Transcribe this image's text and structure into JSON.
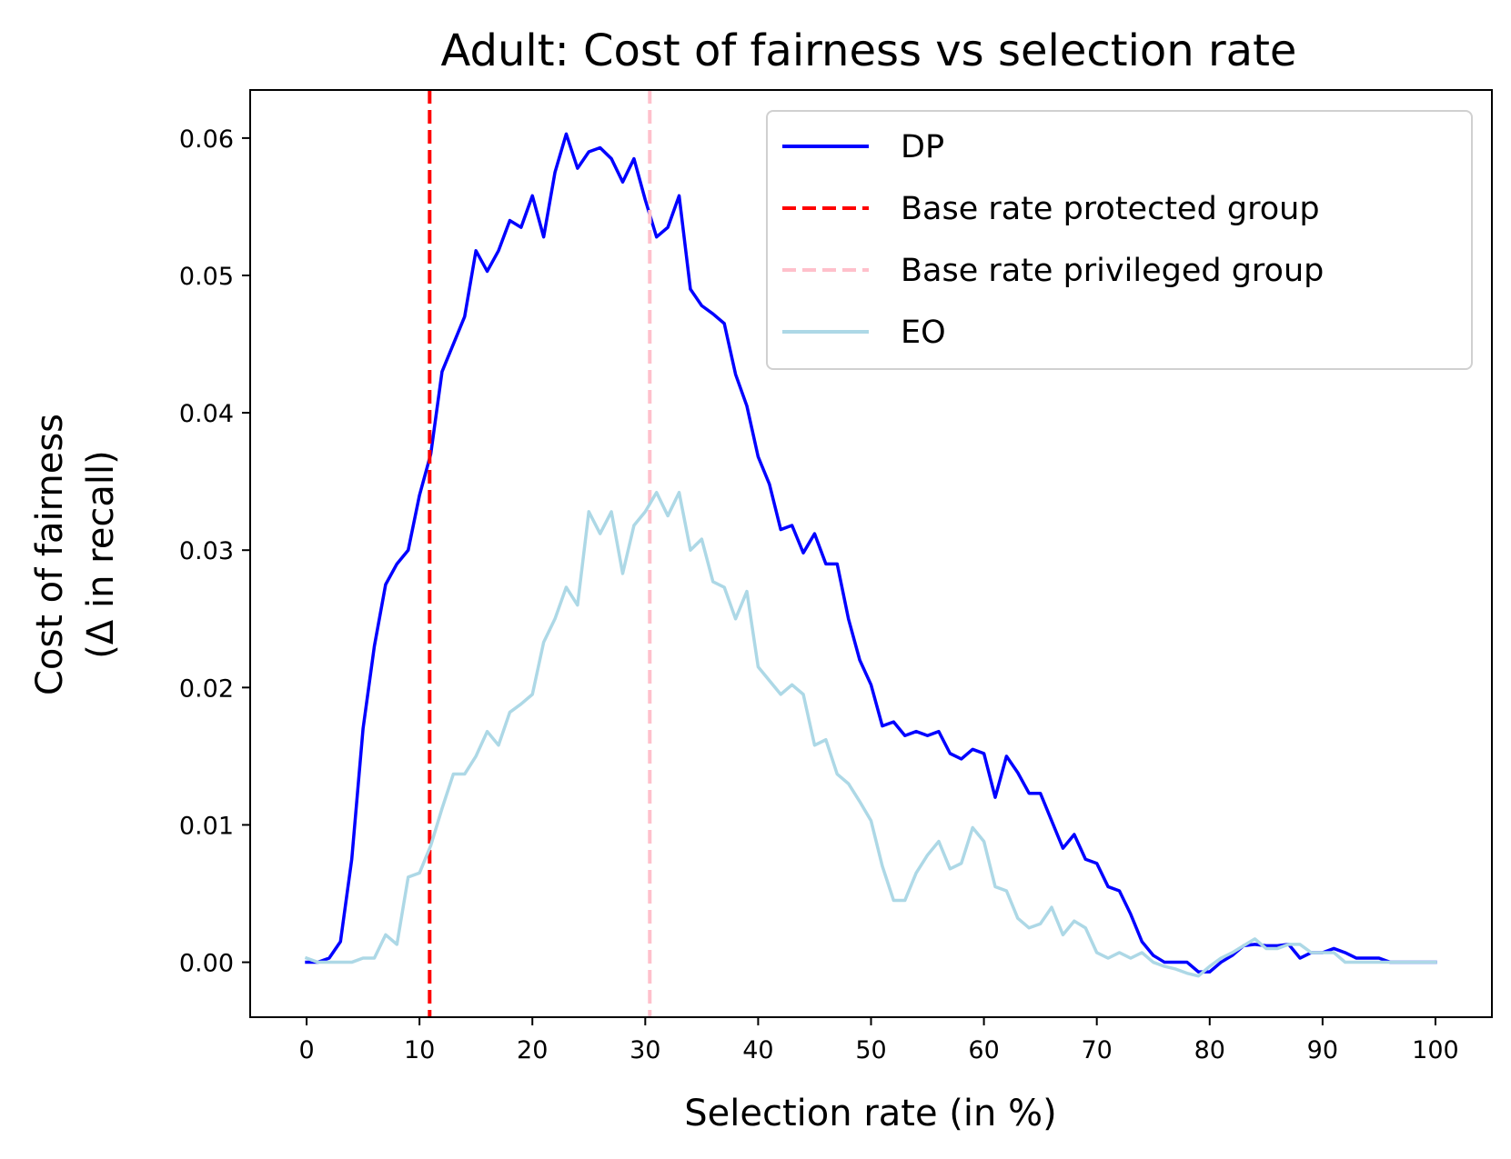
{
  "chart_data": {
    "type": "line",
    "title": "Adult: Cost of fairness vs selection rate",
    "xlabel": "Selection rate (in %)",
    "ylabel_line1": "Cost of fairness",
    "ylabel_line2": "(Δ in recall)",
    "xlim": [
      -5,
      105
    ],
    "ylim": [
      -0.004,
      0.0635
    ],
    "xticks": [
      0,
      10,
      20,
      30,
      40,
      50,
      60,
      70,
      80,
      90,
      100
    ],
    "xtick_labels": [
      "0",
      "10",
      "20",
      "30",
      "40",
      "50",
      "60",
      "70",
      "80",
      "90",
      "100"
    ],
    "yticks": [
      0.0,
      0.01,
      0.02,
      0.03,
      0.04,
      0.05,
      0.06
    ],
    "ytick_labels": [
      "0.00",
      "0.01",
      "0.02",
      "0.03",
      "0.04",
      "0.05",
      "0.06"
    ],
    "legend_position": "top-right",
    "series": [
      {
        "name": "DP",
        "style": "solid",
        "color": "#0000ff",
        "x": [
          0,
          1,
          2,
          3,
          4,
          5,
          6,
          7,
          8,
          9,
          10,
          11,
          12,
          13,
          14,
          15,
          16,
          17,
          18,
          19,
          20,
          21,
          22,
          23,
          24,
          25,
          26,
          27,
          28,
          29,
          30,
          31,
          32,
          33,
          34,
          35,
          36,
          37,
          38,
          39,
          40,
          41,
          42,
          43,
          44,
          45,
          46,
          47,
          48,
          49,
          50,
          51,
          52,
          53,
          54,
          55,
          56,
          57,
          58,
          59,
          60,
          61,
          62,
          63,
          64,
          65,
          66,
          67,
          68,
          69,
          70,
          71,
          72,
          73,
          74,
          75,
          76,
          77,
          78,
          79,
          80,
          81,
          82,
          83,
          84,
          85,
          86,
          87,
          88,
          89,
          90,
          91,
          92,
          93,
          94,
          95,
          96,
          97,
          98,
          99,
          100
        ],
        "y": [
          0.0,
          0.0,
          0.0003,
          0.0015,
          0.0075,
          0.017,
          0.023,
          0.0275,
          0.029,
          0.03,
          0.034,
          0.037,
          0.043,
          0.045,
          0.047,
          0.0518,
          0.0503,
          0.0518,
          0.054,
          0.0535,
          0.0558,
          0.0528,
          0.0575,
          0.0603,
          0.0578,
          0.059,
          0.0593,
          0.0585,
          0.0568,
          0.0585,
          0.0555,
          0.0528,
          0.0535,
          0.0558,
          0.049,
          0.0478,
          0.0472,
          0.0465,
          0.0428,
          0.0405,
          0.0368,
          0.0348,
          0.0315,
          0.0318,
          0.0298,
          0.0312,
          0.029,
          0.029,
          0.025,
          0.022,
          0.0202,
          0.0172,
          0.0175,
          0.0165,
          0.0168,
          0.0165,
          0.0168,
          0.0152,
          0.0148,
          0.0155,
          0.0152,
          0.012,
          0.015,
          0.0138,
          0.0123,
          0.0123,
          0.0103,
          0.0083,
          0.0093,
          0.0075,
          0.0072,
          0.0055,
          0.0052,
          0.0035,
          0.0015,
          0.0005,
          0.0,
          0.0,
          0.0,
          -0.0007,
          -0.0007,
          0.0,
          0.0005,
          0.0012,
          0.0013,
          0.0012,
          0.0012,
          0.0013,
          0.0003,
          0.0007,
          0.0007,
          0.001,
          0.0007,
          0.0003,
          0.0003,
          0.0003,
          0.0,
          0.0,
          0.0,
          0.0,
          0.0
        ]
      },
      {
        "name": "Base rate protected group",
        "style": "dashed",
        "color": "#ff0000",
        "vline_x": 10.9
      },
      {
        "name": "Base rate privileged group",
        "style": "dashed",
        "color": "#ffc0cb",
        "vline_x": 30.4
      },
      {
        "name": "EO",
        "style": "solid",
        "color": "#add8e6",
        "x": [
          0,
          1,
          2,
          3,
          4,
          5,
          6,
          7,
          8,
          9,
          10,
          11,
          12,
          13,
          14,
          15,
          16,
          17,
          18,
          19,
          20,
          21,
          22,
          23,
          24,
          25,
          26,
          27,
          28,
          29,
          30,
          31,
          32,
          33,
          34,
          35,
          36,
          37,
          38,
          39,
          40,
          41,
          42,
          43,
          44,
          45,
          46,
          47,
          48,
          49,
          50,
          51,
          52,
          53,
          54,
          55,
          56,
          57,
          58,
          59,
          60,
          61,
          62,
          63,
          64,
          65,
          66,
          67,
          68,
          69,
          70,
          71,
          72,
          73,
          74,
          75,
          76,
          77,
          78,
          79,
          80,
          81,
          82,
          83,
          84,
          85,
          86,
          87,
          88,
          89,
          90,
          91,
          92,
          93,
          94,
          95,
          96,
          97,
          98,
          99,
          100
        ],
        "y": [
          0.0003,
          0.0,
          0.0,
          0.0,
          0.0,
          0.0003,
          0.0003,
          0.002,
          0.0013,
          0.0062,
          0.0065,
          0.0085,
          0.0112,
          0.0137,
          0.0137,
          0.015,
          0.0168,
          0.0158,
          0.0182,
          0.0188,
          0.0195,
          0.0233,
          0.025,
          0.0273,
          0.026,
          0.0328,
          0.0312,
          0.0328,
          0.0283,
          0.0318,
          0.0328,
          0.0342,
          0.0325,
          0.0342,
          0.03,
          0.0308,
          0.0277,
          0.0273,
          0.025,
          0.027,
          0.0215,
          0.0205,
          0.0195,
          0.0202,
          0.0195,
          0.0158,
          0.0162,
          0.0137,
          0.013,
          0.0117,
          0.0103,
          0.007,
          0.0045,
          0.0045,
          0.0065,
          0.0078,
          0.0088,
          0.0068,
          0.0072,
          0.0098,
          0.0088,
          0.0055,
          0.0052,
          0.0032,
          0.0025,
          0.0028,
          0.004,
          0.002,
          0.003,
          0.0025,
          0.0007,
          0.0003,
          0.0007,
          0.0003,
          0.0007,
          0.0,
          -0.0003,
          -0.0005,
          -0.0008,
          -0.001,
          -0.0003,
          0.0003,
          0.0007,
          0.0012,
          0.0017,
          0.001,
          0.001,
          0.0013,
          0.0013,
          0.0007,
          0.0007,
          0.0007,
          0.0,
          0.0,
          0.0,
          0.0,
          0.0,
          0.0,
          0.0,
          0.0,
          0.0
        ]
      }
    ]
  }
}
